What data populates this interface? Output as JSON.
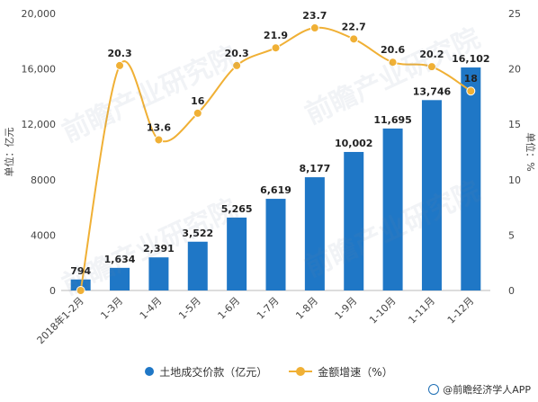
{
  "chart_data": {
    "type": "bar",
    "categories": [
      "2018年1-2月",
      "1-3月",
      "1-4月",
      "1-5月",
      "1-6月",
      "1-7月",
      "1-8月",
      "1-9月",
      "1-10月",
      "1-11月",
      "1-12月"
    ],
    "series": [
      {
        "name": "土地成交价款（亿元）",
        "type": "bar",
        "axis": "left",
        "values": [
          794,
          1634,
          2391,
          3522,
          5265,
          6619,
          8177,
          10002,
          11695,
          13746,
          16102
        ],
        "labels": [
          "794",
          "1,634",
          "2,391",
          "3,522",
          "5,265",
          "6,619",
          "8,177",
          "10,002",
          "11,695",
          "13,746",
          "16,102"
        ]
      },
      {
        "name": "金额增速（%）",
        "type": "line",
        "axis": "right",
        "values": [
          0,
          20.3,
          13.6,
          16,
          20.3,
          21.9,
          23.7,
          22.7,
          20.6,
          20.2,
          18
        ],
        "labels": [
          "",
          "20.3",
          "13.6",
          "16",
          "20.3",
          "21.9",
          "23.7",
          "22.7",
          "20.6",
          "20.2",
          "18"
        ]
      }
    ],
    "ylabel": "单位：亿元",
    "y2label": "单位：%",
    "ylim": [
      0,
      20000
    ],
    "y2lim": [
      0,
      25
    ],
    "yticks": [
      "0",
      "4000",
      "8000",
      "12,000",
      "16,000",
      "20,000"
    ],
    "y2ticks": [
      "0",
      "5",
      "10",
      "15",
      "20",
      "25"
    ],
    "grid": false,
    "legend_position": "bottom"
  },
  "colors": {
    "bar": "#1f77c6",
    "line": "#f0b035"
  },
  "legend": {
    "bar_label": "土地成交价款（亿元）",
    "line_label": "金额增速（%）"
  },
  "watermark": "前瞻产业研究院",
  "source": "@前瞻经济学人APP"
}
